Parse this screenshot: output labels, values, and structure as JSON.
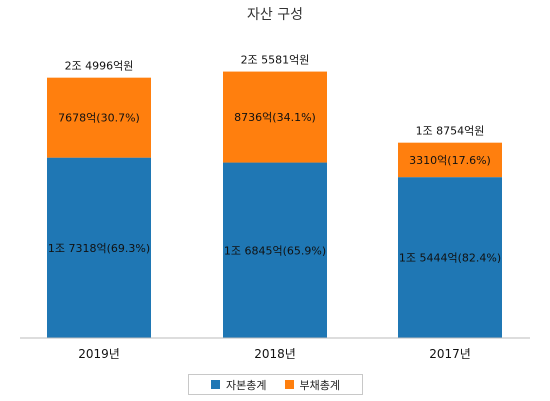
{
  "chart_data": {
    "type": "bar",
    "stacked": true,
    "title": "자산 구성",
    "categories": [
      "2019년",
      "2018년",
      "2017년"
    ],
    "series": [
      {
        "name": "자본총계",
        "color": "#1f77b4",
        "values": [
          17318,
          16845,
          15444
        ],
        "labels": [
          "1조 7318억(69.3%)",
          "1조 6845억(65.9%)",
          "1조 5444억(82.4%)"
        ]
      },
      {
        "name": "부채총계",
        "color": "#ff7f0e",
        "values": [
          7678,
          8736,
          3310
        ],
        "labels": [
          "7678억(30.7%)",
          "8736억(34.1%)",
          "3310억(17.6%)"
        ]
      }
    ],
    "totals": [
      24996,
      25581,
      18754
    ],
    "total_labels": [
      "2조 4996억원",
      "2조 5581억원",
      "1조 8754억원"
    ],
    "ylim": [
      0,
      26500
    ],
    "grid": false,
    "legend_position": "bottom"
  }
}
